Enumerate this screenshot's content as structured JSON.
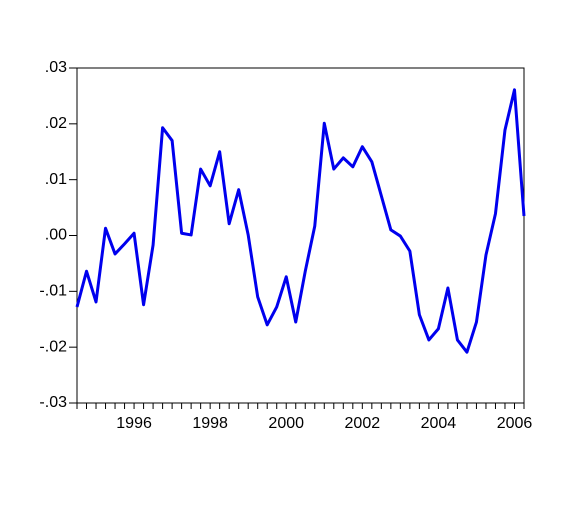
{
  "chart_data": {
    "type": "line",
    "x": [
      1995,
      1995.25,
      1995.5,
      1995.75,
      1996,
      1996.25,
      1996.5,
      1996.75,
      1997,
      1997.25,
      1997.5,
      1997.75,
      1998,
      1998.25,
      1998.5,
      1998.75,
      1999,
      1999.25,
      1999.5,
      1999.75,
      2000,
      2000.25,
      2000.5,
      2000.75,
      2001,
      2001.25,
      2001.5,
      2001.75,
      2002,
      2002.25,
      2002.5,
      2002.75,
      2003,
      2003.25,
      2003.5,
      2003.75,
      2004,
      2004.25,
      2004.5,
      2004.75,
      2005,
      2005.25,
      2005.5,
      2005.75,
      2006,
      2006.25,
      2006.5,
      2006.75
    ],
    "series": [
      {
        "color": "#0000ee",
        "values": [
          -0.0128,
          -0.0064,
          -0.0119,
          0.0013,
          -0.0033,
          -0.0015,
          0.0004,
          -0.0124,
          -0.0017,
          0.0193,
          0.017,
          0.0004,
          0.0001,
          0.0119,
          0.0089,
          0.015,
          0.0021,
          0.0082,
          0.0001,
          -0.011,
          -0.016,
          -0.0128,
          -0.0074,
          -0.0155,
          -0.0064,
          0.0017,
          0.0201,
          0.0119,
          0.0139,
          0.0123,
          0.0159,
          0.0132,
          0.0071,
          0.001,
          -0.0001,
          -0.0028,
          -0.0142,
          -0.0187,
          -0.0167,
          -0.0094,
          -0.0187,
          -0.0209,
          -0.0155,
          -0.0035,
          0.0039,
          0.0189,
          0.0261,
          0.0035
        ]
      }
    ],
    "xlim": [
      1995,
      2006.75
    ],
    "xticks": [
      {
        "value": 1996.5,
        "label": "1996"
      },
      {
        "value": 1998.5,
        "label": "1998"
      },
      {
        "value": 2000.5,
        "label": "2000"
      },
      {
        "value": 2002.5,
        "label": "2002"
      },
      {
        "value": 2004.5,
        "label": "2004"
      },
      {
        "value": 2006.5,
        "label": "2006"
      }
    ],
    "ylim": [
      -0.03,
      0.03
    ],
    "yticks": [
      {
        "value": 0.03,
        "label": ".03"
      },
      {
        "value": 0.02,
        "label": ".02"
      },
      {
        "value": 0.01,
        "label": ".01"
      },
      {
        "value": 0,
        "label": ".00"
      },
      {
        "value": -0.01,
        "label": "-.01"
      },
      {
        "value": -0.02,
        "label": "-.02"
      },
      {
        "value": -0.03,
        "label": "-.03"
      }
    ]
  }
}
